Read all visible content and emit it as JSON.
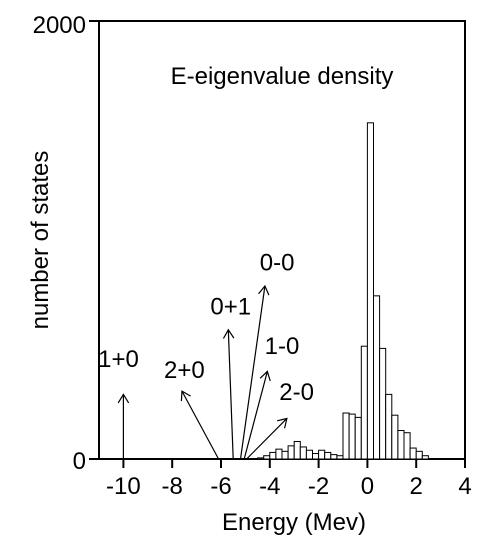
{
  "chart_data": {
    "type": "bar",
    "title": "E-eigenvalue density",
    "xlabel": "Energy (Mev)",
    "ylabel": "number of states",
    "xlim": [
      -11,
      4
    ],
    "ylim": [
      0,
      2000
    ],
    "xticks": [
      -10,
      -8,
      -6,
      -4,
      -2,
      0,
      2,
      4
    ],
    "xtick_labels": [
      "-10",
      "-8",
      "-6",
      "-4",
      "-2",
      "0",
      "2",
      "4"
    ],
    "yticks": [
      0,
      2000
    ],
    "ytick_labels": [
      "0",
      "2000"
    ],
    "bin_width": 0.25,
    "bins": [
      {
        "x": -4.375,
        "value": 5
      },
      {
        "x": -4.125,
        "value": 15
      },
      {
        "x": -3.875,
        "value": 30
      },
      {
        "x": -3.625,
        "value": 45
      },
      {
        "x": -3.375,
        "value": 35
      },
      {
        "x": -3.125,
        "value": 60
      },
      {
        "x": -2.875,
        "value": 80
      },
      {
        "x": -2.625,
        "value": 55
      },
      {
        "x": -2.375,
        "value": 40
      },
      {
        "x": -2.125,
        "value": 25
      },
      {
        "x": -1.875,
        "value": 40
      },
      {
        "x": -1.625,
        "value": 30
      },
      {
        "x": -1.375,
        "value": 20
      },
      {
        "x": -1.125,
        "value": 15
      },
      {
        "x": -0.875,
        "value": 210
      },
      {
        "x": -0.625,
        "value": 205
      },
      {
        "x": -0.375,
        "value": 190
      },
      {
        "x": -0.125,
        "value": 515
      },
      {
        "x": 0.125,
        "value": 1535
      },
      {
        "x": 0.375,
        "value": 745
      },
      {
        "x": 0.625,
        "value": 505
      },
      {
        "x": 0.875,
        "value": 295
      },
      {
        "x": 1.125,
        "value": 200
      },
      {
        "x": 1.375,
        "value": 130
      },
      {
        "x": 1.625,
        "value": 120
      },
      {
        "x": 1.875,
        "value": 50
      },
      {
        "x": 2.125,
        "value": 35
      },
      {
        "x": 2.375,
        "value": 15
      }
    ],
    "annotations": [
      {
        "label": "1+0",
        "arrow_from": [
          -10.0,
          0
        ],
        "arrow_to": [
          -10.0,
          295
        ],
        "text_at": [
          -10.2,
          420
        ]
      },
      {
        "label": "2+0",
        "arrow_from": [
          -6.1,
          0
        ],
        "arrow_to": [
          -7.6,
          310
        ],
        "text_at": [
          -7.5,
          370
        ]
      },
      {
        "label": "0+1",
        "arrow_from": [
          -5.5,
          0
        ],
        "arrow_to": [
          -5.7,
          590
        ],
        "text_at": [
          -5.6,
          660
        ]
      },
      {
        "label": "0-0",
        "arrow_from": [
          -5.2,
          0
        ],
        "arrow_to": [
          -4.2,
          790
        ],
        "text_at": [
          -3.7,
          860
        ]
      },
      {
        "label": "1-0",
        "arrow_from": [
          -5.05,
          0
        ],
        "arrow_to": [
          -4.1,
          400
        ],
        "text_at": [
          -3.5,
          480
        ]
      },
      {
        "label": "2-0",
        "arrow_from": [
          -4.95,
          0
        ],
        "arrow_to": [
          -3.3,
          185
        ],
        "text_at": [
          -2.9,
          270
        ]
      }
    ]
  }
}
